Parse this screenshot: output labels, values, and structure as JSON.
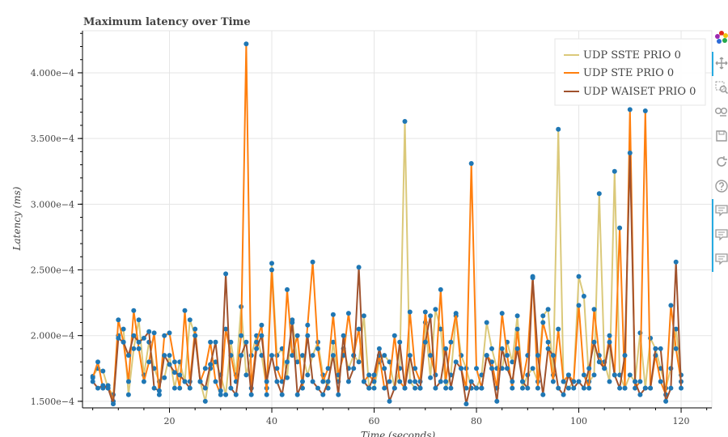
{
  "chart_data": {
    "type": "line",
    "title": "Maximum latency over Time",
    "xlabel": "Time (seconds)",
    "ylabel": "Latency (ms)",
    "xlim": [
      3,
      126
    ],
    "ylim": [
      0.000145,
      0.000432
    ],
    "x_ticks": [
      20,
      40,
      60,
      80,
      100,
      120
    ],
    "y_ticks": [
      0.00015,
      0.0002,
      0.00025,
      0.0003,
      0.00035,
      0.0004
    ],
    "y_tick_labels": [
      "1.500e−4",
      "2.000e−4",
      "2.500e−4",
      "3.000e−4",
      "3.500e−4",
      "4.000e−4"
    ],
    "grid": true,
    "legend_position": "top-right",
    "marker_color": "#1f77b4",
    "series": [
      {
        "name": "UDP SSTE PRIO 0",
        "color": "#dbc97a",
        "x": [
          5,
          6,
          7,
          8,
          9,
          10,
          11,
          12,
          13,
          14,
          15,
          16,
          17,
          18,
          19,
          20,
          21,
          22,
          23,
          24,
          25,
          26,
          27,
          28,
          29,
          30,
          31,
          32,
          33,
          34,
          35,
          36,
          37,
          38,
          39,
          40,
          41,
          42,
          43,
          44,
          45,
          46,
          47,
          48,
          49,
          50,
          51,
          52,
          53,
          54,
          55,
          56,
          57,
          58,
          59,
          60,
          61,
          62,
          63,
          64,
          65,
          66,
          67,
          68,
          69,
          70,
          71,
          72,
          73,
          74,
          75,
          76,
          77,
          78,
          79,
          80,
          81,
          82,
          83,
          84,
          85,
          86,
          87,
          88,
          89,
          90,
          91,
          92,
          93,
          94,
          95,
          96,
          97,
          98,
          99,
          100,
          101,
          102,
          103,
          104,
          105,
          106,
          107,
          108,
          109,
          110,
          111,
          112,
          113,
          114,
          115,
          116,
          117,
          118,
          119,
          120
        ],
        "values": [
          0.000169,
          0.000175,
          0.000173,
          0.00016,
          0.000155,
          0.0002,
          0.000205,
          0.000155,
          0.00019,
          0.000212,
          0.00017,
          0.000195,
          0.000175,
          0.000165,
          0.000168,
          0.000185,
          0.00016,
          0.00018,
          0.000165,
          0.000212,
          0.0002,
          0.000165,
          0.00015,
          0.000175,
          0.00018,
          0.00017,
          0.000155,
          0.000195,
          0.00017,
          0.000222,
          0.00017,
          0.000185,
          0.0002,
          0.000185,
          0.00016,
          0.000255,
          0.000185,
          0.00019,
          0.000168,
          0.000212,
          0.00018,
          0.000185,
          0.00017,
          0.000185,
          0.000195,
          0.00017,
          0.00016,
          0.000195,
          0.000165,
          0.00019,
          0.000175,
          0.000185,
          0.00018,
          0.000215,
          0.00016,
          0.00016,
          0.00018,
          0.000185,
          0.00018,
          0.00016,
          0.000175,
          0.000363,
          0.000165,
          0.00016,
          0.00016,
          0.00021,
          0.000168,
          0.00022,
          0.000205,
          0.00016,
          0.00017,
          0.000215,
          0.000185,
          0.000175,
          0.00016,
          0.00016,
          0.00017,
          0.00021,
          0.00019,
          0.000175,
          0.000175,
          0.000195,
          0.00018,
          0.000215,
          0.00016,
          0.00017,
          0.000175,
          0.000165,
          0.000215,
          0.00022,
          0.00017,
          0.000357,
          0.000165,
          0.00016,
          0.000165,
          0.000245,
          0.00023,
          0.000165,
          0.00017,
          0.000308,
          0.00018,
          0.000165,
          0.000325,
          0.00017,
          0.00016,
          0.00017,
          0.000165,
          0.000202,
          0.00016,
          0.000198,
          0.00019,
          0.000175,
          0.00016,
          0.000175,
          0.000205,
          0.00017
        ]
      },
      {
        "name": "UDP STE PRIO 0",
        "color": "#ff7f0e",
        "x": [
          5,
          6,
          7,
          8,
          9,
          10,
          11,
          12,
          13,
          14,
          15,
          16,
          17,
          18,
          19,
          20,
          21,
          22,
          23,
          24,
          25,
          26,
          27,
          28,
          29,
          30,
          31,
          32,
          33,
          34,
          35,
          36,
          37,
          38,
          39,
          40,
          41,
          42,
          43,
          44,
          45,
          46,
          47,
          48,
          49,
          50,
          51,
          52,
          53,
          54,
          55,
          56,
          57,
          58,
          59,
          60,
          61,
          62,
          63,
          64,
          65,
          66,
          67,
          68,
          69,
          70,
          71,
          72,
          73,
          74,
          75,
          76,
          77,
          78,
          79,
          80,
          81,
          82,
          83,
          84,
          85,
          86,
          87,
          88,
          89,
          90,
          91,
          92,
          93,
          94,
          95,
          96,
          97,
          98,
          99,
          100,
          101,
          102,
          103,
          104,
          105,
          106,
          107,
          108,
          109,
          110,
          111,
          112,
          113,
          114,
          115,
          116,
          117,
          118,
          119,
          120
        ],
        "values": [
          0.000168,
          0.00018,
          0.00016,
          0.000162,
          0.00015,
          0.000212,
          0.000195,
          0.000165,
          0.000219,
          0.00019,
          0.000165,
          0.00018,
          0.000202,
          0.000155,
          0.0002,
          0.000202,
          0.00018,
          0.00016,
          0.000219,
          0.000165,
          0.000205,
          0.000165,
          0.000175,
          0.000195,
          0.000165,
          0.000155,
          0.000205,
          0.000185,
          0.000165,
          0.0002,
          0.000422,
          0.00016,
          0.000195,
          0.000208,
          0.000155,
          0.00025,
          0.000175,
          0.000165,
          0.000235,
          0.000185,
          0.0002,
          0.00016,
          0.000208,
          0.000256,
          0.00019,
          0.000165,
          0.000175,
          0.000216,
          0.00017,
          0.000185,
          0.000217,
          0.000185,
          0.000205,
          0.000165,
          0.00017,
          0.000165,
          0.000185,
          0.00016,
          0.000165,
          0.0002,
          0.000165,
          0.00016,
          0.000218,
          0.000175,
          0.000165,
          0.000218,
          0.000185,
          0.00017,
          0.000235,
          0.000165,
          0.000195,
          0.000217,
          0.000175,
          0.00016,
          0.000331,
          0.000175,
          0.00016,
          0.000185,
          0.00018,
          0.00016,
          0.000217,
          0.000185,
          0.00016,
          0.000205,
          0.000165,
          0.000185,
          0.000245,
          0.00016,
          0.00021,
          0.000195,
          0.000165,
          0.000205,
          0.000165,
          0.00017,
          0.000165,
          0.000223,
          0.00017,
          0.00016,
          0.00022,
          0.000185,
          0.000175,
          0.0002,
          0.00017,
          0.000282,
          0.00016,
          0.000372,
          0.00016,
          0.000165,
          0.000371,
          0.00016,
          0.000185,
          0.000165,
          0.000155,
          0.000223,
          0.00019,
          0.000165
        ]
      },
      {
        "name": "UDP WAISET PRIO 0",
        "color": "#a0522d",
        "x": [
          5,
          6,
          7,
          8,
          9,
          10,
          11,
          12,
          13,
          14,
          15,
          16,
          17,
          18,
          19,
          20,
          21,
          22,
          23,
          24,
          25,
          26,
          27,
          28,
          29,
          30,
          31,
          32,
          33,
          34,
          35,
          36,
          37,
          38,
          39,
          40,
          41,
          42,
          43,
          44,
          45,
          46,
          47,
          48,
          49,
          50,
          51,
          52,
          53,
          54,
          55,
          56,
          57,
          58,
          59,
          60,
          61,
          62,
          63,
          64,
          65,
          66,
          67,
          68,
          69,
          70,
          71,
          72,
          73,
          74,
          75,
          76,
          77,
          78,
          79,
          80,
          81,
          82,
          83,
          84,
          85,
          86,
          87,
          88,
          89,
          90,
          91,
          92,
          93,
          94,
          95,
          96,
          97,
          98,
          99,
          100,
          101,
          102,
          103,
          104,
          105,
          106,
          107,
          108,
          109,
          110,
          111,
          112,
          113,
          114,
          115,
          116,
          117,
          118,
          119,
          120
        ],
        "values": [
          0.000165,
          0.00016,
          0.000162,
          0.00016,
          0.000148,
          0.000198,
          0.000195,
          0.000185,
          0.0002,
          0.000195,
          0.000198,
          0.000203,
          0.00016,
          0.000158,
          0.000185,
          0.000178,
          0.000172,
          0.00017,
          0.000165,
          0.00016,
          0.0002,
          0.000165,
          0.00016,
          0.000178,
          0.000195,
          0.000158,
          0.000247,
          0.00016,
          0.000155,
          0.000185,
          0.000195,
          0.000155,
          0.00019,
          0.0002,
          0.000165,
          0.000185,
          0.000165,
          0.000155,
          0.00018,
          0.00021,
          0.000155,
          0.000165,
          0.0002,
          0.000165,
          0.00016,
          0.000155,
          0.000165,
          0.000185,
          0.000155,
          0.0002,
          0.000165,
          0.000175,
          0.000252,
          0.000165,
          0.00016,
          0.00017,
          0.00019,
          0.000175,
          0.00015,
          0.00016,
          0.000195,
          0.00016,
          0.000185,
          0.000165,
          0.00016,
          0.000195,
          0.000215,
          0.00016,
          0.000165,
          0.00019,
          0.00016,
          0.00018,
          0.000175,
          0.000148,
          0.000165,
          0.00016,
          0.00016,
          0.000185,
          0.000175,
          0.00015,
          0.00019,
          0.000175,
          0.000165,
          0.00019,
          0.000165,
          0.00016,
          0.000244,
          0.000185,
          0.000155,
          0.00019,
          0.000185,
          0.00016,
          0.000155,
          0.00017,
          0.00016,
          0.000165,
          0.00016,
          0.000175,
          0.000195,
          0.00018,
          0.000175,
          0.000195,
          0.00017,
          0.00016,
          0.000185,
          0.000339,
          0.000165,
          0.000155,
          0.00016,
          0.00016,
          0.00019,
          0.00019,
          0.00015,
          0.00016,
          0.000256,
          0.00016
        ]
      }
    ]
  },
  "toolbar": {
    "icons": [
      "bokeh-logo-icon",
      "pan-icon",
      "box-zoom-icon",
      "wheel-zoom-icon",
      "save-icon",
      "reset-icon",
      "help-icon",
      "hover-icon",
      "hover-icon",
      "hover-icon"
    ],
    "accent_color": "#26aae1"
  }
}
